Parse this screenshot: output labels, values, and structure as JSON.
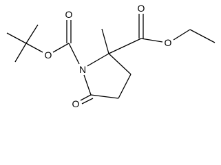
{
  "atoms": [
    {
      "label": "O"
    },
    {
      "label": "O"
    },
    {
      "label": "N"
    },
    {
      "label": "O"
    },
    {
      "label": "O"
    },
    {
      "label": "O"
    }
  ]
}
